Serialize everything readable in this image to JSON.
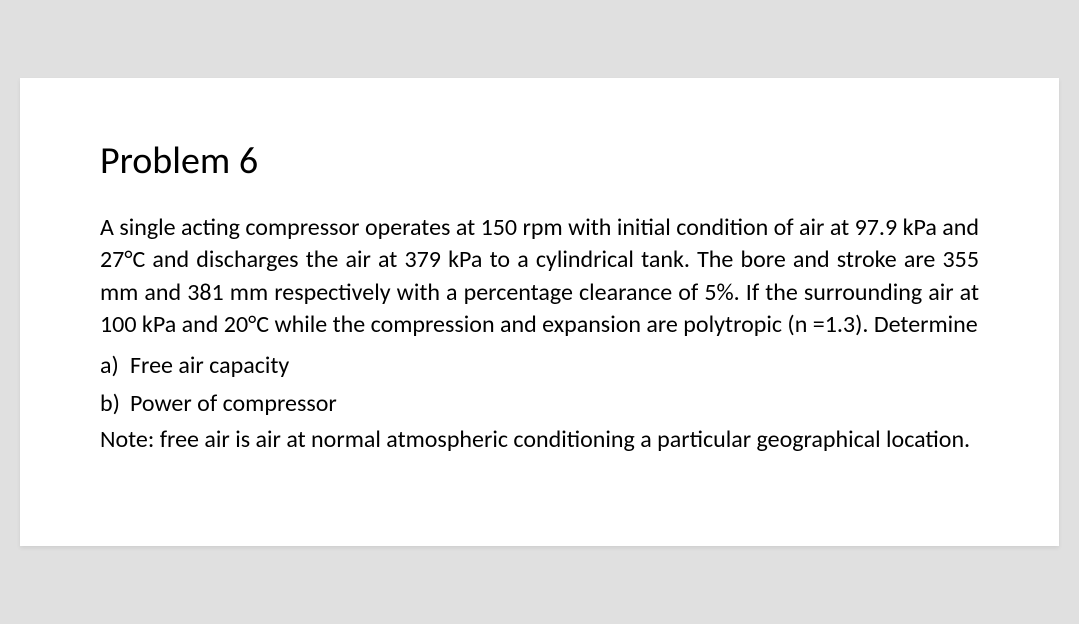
{
  "document": {
    "title": "Problem 6",
    "body": "A single acting compressor operates at 150 rpm with initial condition of air at 97.9 kPa and 27°C and discharges the air at 379 kPa to a cylindrical tank. The bore and stroke are 355 mm and 381 mm respectively with a percentage clearance of 5%. If the surrounding air at 100 kPa and 20°C while the compression and expansion are polytropic (n =1.3). Determine",
    "items": [
      {
        "marker": "a)",
        "text": "Free air capacity"
      },
      {
        "marker": "b)",
        "text": "Power of compressor"
      }
    ],
    "note": "Note: free air is air at normal atmospheric conditioning a particular geographical location.",
    "background_color": "#ffffff",
    "text_color": "#000000",
    "title_fontsize": 38,
    "body_fontsize": 24
  }
}
